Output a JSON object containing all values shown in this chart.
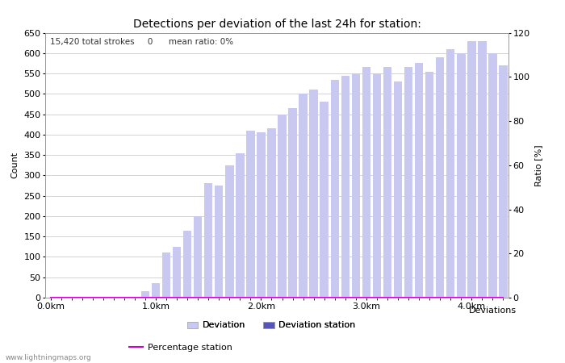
{
  "title": "Detections per deviation of the last 24h for station:",
  "annotation": "15,420 total strokes     0      mean ratio: 0%",
  "xlabel": "Deviations",
  "ylabel_left": "Count",
  "ylabel_right": "Ratio [%]",
  "watermark": "www.lightningmaps.org",
  "ylim_left": [
    0,
    650
  ],
  "ylim_right": [
    0,
    120
  ],
  "yticks_left": [
    0,
    50,
    100,
    150,
    200,
    250,
    300,
    350,
    400,
    450,
    500,
    550,
    600,
    650
  ],
  "yticks_right": [
    0,
    20,
    40,
    60,
    80,
    100,
    120
  ],
  "xtick_labels": [
    "0.0km",
    "1.0km",
    "2.0km",
    "3.0km",
    "4.0km"
  ],
  "xtick_positions": [
    0,
    10,
    20,
    30,
    40
  ],
  "bar_color_light": "#c8c8f0",
  "bar_color_dark": "#5555bb",
  "line_color": "#cc00cc",
  "deviation_values": [
    0,
    0,
    0,
    0,
    0,
    0,
    0,
    0,
    0,
    15,
    35,
    110,
    125,
    165,
    200,
    280,
    275,
    325,
    355,
    410,
    405,
    415,
    450,
    465,
    500,
    510,
    480,
    535,
    545,
    550,
    565,
    550,
    565,
    530,
    565,
    575,
    555,
    590,
    610,
    600,
    630,
    630,
    600,
    570
  ],
  "station_values": [
    0,
    0,
    0,
    0,
    0,
    0,
    0,
    0,
    0,
    0,
    0,
    0,
    0,
    0,
    0,
    0,
    0,
    0,
    0,
    0,
    0,
    0,
    0,
    0,
    0,
    0,
    0,
    0,
    0,
    0,
    0,
    0,
    0,
    0,
    0,
    0,
    0,
    0,
    0,
    0,
    0,
    0,
    0,
    0
  ],
  "percentage_values": [
    0,
    0,
    0,
    0,
    0,
    0,
    0,
    0,
    0,
    0,
    0,
    0,
    0,
    0,
    0,
    0,
    0,
    0,
    0,
    0,
    0,
    0,
    0,
    0,
    0,
    0,
    0,
    0,
    0,
    0,
    0,
    0,
    0,
    0,
    0,
    0,
    0,
    0,
    0,
    0,
    0,
    0,
    0,
    0
  ],
  "n_bars": 44,
  "background_color": "#ffffff",
  "grid_color": "#cccccc",
  "title_fontsize": 10,
  "label_fontsize": 8,
  "tick_fontsize": 8,
  "legend_fontsize": 8,
  "annot_fontsize": 7.5
}
